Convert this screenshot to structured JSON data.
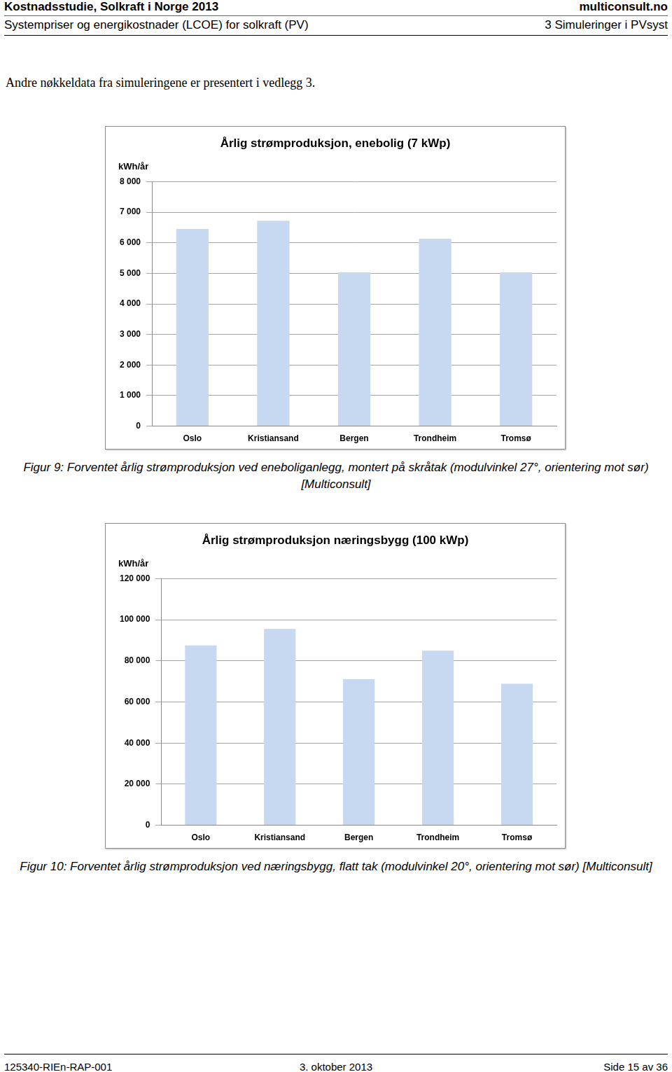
{
  "header": {
    "title": "Kostnadsstudie, Solkraft i Norge 2013",
    "subtitle": "Systempriser og energikostnader (LCOE) for solkraft (PV)",
    "site": "multiconsult.no",
    "section": "3 Simuleringer i PVsyst"
  },
  "intro": "Andre nøkkeldata fra simuleringene er presentert i vedlegg 3.",
  "chart_data": [
    {
      "type": "bar",
      "title": "Årlig strømproduksjon, enebolig (7 kWp)",
      "y_label": "kWh/år",
      "categories": [
        "Oslo",
        "Kristiansand",
        "Bergen",
        "Trondheim",
        "Tromsø"
      ],
      "values": [
        6450,
        6720,
        5030,
        6130,
        5030
      ],
      "color": "#c6d9f1",
      "ylim": [
        0,
        8000
      ],
      "yticks": [
        0,
        {
          "value": 1000,
          "label": "1 000"
        },
        {
          "value": 2000,
          "label": "2 000"
        },
        {
          "value": 3000,
          "label": "3 000"
        },
        {
          "value": 4000,
          "label": "4 000"
        },
        {
          "value": 5000,
          "label": "5 000"
        },
        {
          "value": 6000,
          "label": "6 000"
        },
        {
          "value": 7000,
          "label": "7 000"
        },
        {
          "value": 8000,
          "label": "8 000"
        }
      ],
      "grid": true
    },
    {
      "type": "bar",
      "title": "Årlig strømproduksjon næringsbygg (100 kWp)",
      "y_label": "kWh/år",
      "categories": [
        "Oslo",
        "Kristiansand",
        "Bergen",
        "Trondheim",
        "Tromsø"
      ],
      "values": [
        87500,
        95500,
        71100,
        85000,
        68900
      ],
      "color": "#c6d9f1",
      "ylim": [
        0,
        120000
      ],
      "yticks": [
        0,
        {
          "value": 20000,
          "label": "20 000"
        },
        {
          "value": 40000,
          "label": "40 000"
        },
        {
          "value": 60000,
          "label": "60 000"
        },
        {
          "value": 80000,
          "label": "80 000"
        },
        {
          "value": 100000,
          "label": "100 000"
        },
        {
          "value": 120000,
          "label": "120 000"
        }
      ],
      "grid": true
    }
  ],
  "captions": [
    "Figur 9: Forventet årlig strømproduksjon ved eneboliganlegg, montert på skråtak (modulvinkel 27°, orientering mot sør) [Multiconsult]",
    "Figur 10: Forventet årlig strømproduksjon ved næringsbygg, flatt tak (modulvinkel 20°, orientering mot sør) [Multiconsult]"
  ],
  "footer": {
    "doc_id": "125340-RIEn-RAP-001",
    "date": "3. oktober 2013",
    "page": "Side 15 av 36"
  }
}
